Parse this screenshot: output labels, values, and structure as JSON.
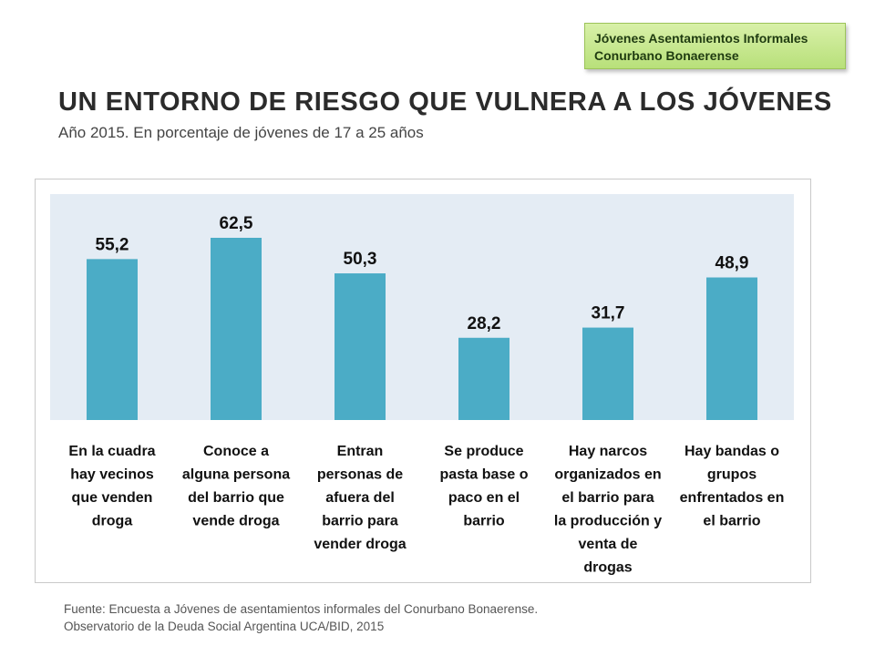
{
  "tag": {
    "line1": "Jóvenes Asentamientos Informales",
    "line2": "Conurbano Bonaerense"
  },
  "title": "UN ENTORNO DE RIESGO QUE VULNERA A LOS JÓVENES",
  "subtitle": "Año 2015.  En porcentaje de jóvenes de 17 a 25 años",
  "source": {
    "line1": "Fuente: Encuesta a Jóvenes de asentamientos informales del Conurbano Bonaerense.",
    "line2": "Observatorio de la Deuda Social Argentina UCA/BID, 2015"
  },
  "colors": {
    "bar": "#4bacc6",
    "plot_bg": "#e4ecf4",
    "text": "#111111"
  },
  "chart_data": {
    "type": "bar",
    "categories": [
      [
        "En la cuadra",
        "hay vecinos",
        "que venden",
        "droga"
      ],
      [
        "Conoce a",
        "alguna persona",
        "del barrio que",
        "vende droga"
      ],
      [
        "Entran",
        "personas de",
        "afuera del",
        "barrio para",
        "vender droga"
      ],
      [
        "Se produce",
        "pasta base o",
        "paco en el",
        "barrio"
      ],
      [
        "Hay narcos",
        "organizados en",
        "el barrio para",
        "la producción y",
        "venta de",
        "drogas"
      ],
      [
        "Hay bandas o",
        "grupos",
        "enfrentados en",
        "el barrio"
      ]
    ],
    "values": [
      55.2,
      62.5,
      50.3,
      28.2,
      31.7,
      48.9
    ],
    "labels": [
      "55,2",
      "62,5",
      "50,3",
      "28,2",
      "31,7",
      "48,9"
    ],
    "ylim": [
      0,
      100
    ],
    "grid": false
  }
}
